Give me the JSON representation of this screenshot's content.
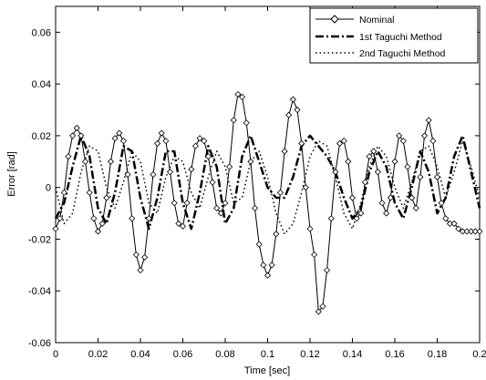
{
  "chart_data": {
    "type": "line",
    "title": "",
    "xlabel": "Time [sec]",
    "ylabel": "Error [rad]",
    "xlim": [
      0,
      0.2
    ],
    "ylim": [
      -0.06,
      0.07
    ],
    "xticks": [
      0,
      0.02,
      0.04,
      0.06,
      0.08,
      0.1,
      0.12,
      0.14,
      0.16,
      0.18,
      0.2
    ],
    "xtick_labels": [
      "0",
      "0.02",
      "0.04",
      "0.06",
      "0.08",
      "0.1",
      "0.12",
      "0.14",
      "0.16",
      "0.18",
      "0.2"
    ],
    "yticks": [
      -0.06,
      -0.04,
      -0.02,
      0,
      0.02,
      0.04,
      0.06
    ],
    "ytick_labels": [
      "-0.06",
      "-0.04",
      "-0.02",
      "0",
      "0.02",
      "0.04",
      "0.06"
    ],
    "grid": false,
    "legend_position": "top-right",
    "series": [
      {
        "name": "Nominal",
        "style": "solid-diamond-markers",
        "color": "#000000",
        "x": [
          0,
          0.002,
          0.004,
          0.006,
          0.008,
          0.01,
          0.012,
          0.014,
          0.016,
          0.018,
          0.02,
          0.022,
          0.024,
          0.026,
          0.028,
          0.03,
          0.032,
          0.034,
          0.036,
          0.038,
          0.04,
          0.042,
          0.044,
          0.046,
          0.048,
          0.05,
          0.052,
          0.054,
          0.056,
          0.058,
          0.06,
          0.062,
          0.064,
          0.066,
          0.068,
          0.07,
          0.072,
          0.074,
          0.076,
          0.078,
          0.08,
          0.082,
          0.084,
          0.086,
          0.088,
          0.09,
          0.092,
          0.094,
          0.096,
          0.098,
          0.1,
          0.102,
          0.104,
          0.106,
          0.108,
          0.11,
          0.112,
          0.114,
          0.116,
          0.118,
          0.12,
          0.122,
          0.124,
          0.126,
          0.128,
          0.13,
          0.132,
          0.134,
          0.136,
          0.138,
          0.14,
          0.142,
          0.144,
          0.146,
          0.148,
          0.15,
          0.152,
          0.154,
          0.156,
          0.158,
          0.16,
          0.162,
          0.164,
          0.166,
          0.168,
          0.17,
          0.172,
          0.174,
          0.176,
          0.178,
          0.18,
          0.182,
          0.184,
          0.186,
          0.188,
          0.19,
          0.192,
          0.194,
          0.196,
          0.198,
          0.2
        ],
        "y": [
          -0.016,
          -0.012,
          -0.002,
          0.012,
          0.02,
          0.023,
          0.02,
          0.01,
          -0.002,
          -0.012,
          -0.017,
          -0.014,
          -0.004,
          0.01,
          0.019,
          0.021,
          0.018,
          0.005,
          -0.012,
          -0.026,
          -0.032,
          -0.027,
          -0.012,
          0.005,
          0.017,
          0.021,
          0.018,
          0.006,
          -0.006,
          -0.014,
          -0.015,
          -0.006,
          0.007,
          0.016,
          0.019,
          0.018,
          0.012,
          0.002,
          -0.008,
          -0.01,
          -0.006,
          0.008,
          0.026,
          0.036,
          0.035,
          0.025,
          0.01,
          -0.008,
          -0.022,
          -0.03,
          -0.034,
          -0.03,
          -0.018,
          -0.002,
          0.014,
          0.028,
          0.034,
          0.03,
          0.017,
          0.0,
          -0.016,
          -0.026,
          -0.048,
          -0.046,
          -0.032,
          -0.012,
          0.006,
          0.017,
          0.018,
          0.01,
          -0.004,
          -0.012,
          -0.01,
          0.002,
          0.012,
          0.014,
          0.006,
          -0.006,
          -0.01,
          -0.004,
          0.01,
          0.02,
          0.018,
          0.008,
          -0.004,
          -0.008,
          0.004,
          0.02,
          0.026,
          0.018,
          0.004,
          -0.006,
          -0.012,
          -0.014,
          -0.014,
          -0.016,
          -0.017,
          -0.017,
          -0.017,
          -0.017,
          -0.017
        ]
      },
      {
        "name": "1st Taguchi Method",
        "style": "dash-dot",
        "color": "#000000",
        "x": [
          0,
          0.004,
          0.008,
          0.012,
          0.016,
          0.02,
          0.024,
          0.028,
          0.032,
          0.036,
          0.04,
          0.044,
          0.048,
          0.052,
          0.056,
          0.06,
          0.064,
          0.068,
          0.072,
          0.076,
          0.08,
          0.084,
          0.088,
          0.092,
          0.096,
          0.1,
          0.104,
          0.108,
          0.112,
          0.116,
          0.12,
          0.124,
          0.128,
          0.132,
          0.136,
          0.14,
          0.144,
          0.148,
          0.152,
          0.156,
          0.16,
          0.164,
          0.168,
          0.172,
          0.176,
          0.18,
          0.184,
          0.188,
          0.192,
          0.196,
          0.2
        ],
        "y": [
          -0.012,
          -0.006,
          0.008,
          0.02,
          0.012,
          -0.008,
          -0.014,
          -0.002,
          0.016,
          0.014,
          -0.004,
          -0.016,
          -0.004,
          0.014,
          0.014,
          -0.006,
          -0.016,
          -0.002,
          0.016,
          0.008,
          -0.014,
          -0.008,
          0.012,
          0.02,
          0.01,
          0.0,
          -0.004,
          -0.004,
          0.004,
          0.016,
          0.02,
          0.016,
          0.012,
          0.006,
          -0.004,
          -0.012,
          -0.008,
          0.006,
          0.014,
          0.008,
          -0.006,
          -0.012,
          0.0,
          0.014,
          0.006,
          -0.01,
          -0.004,
          0.012,
          0.02,
          0.006,
          -0.008
        ]
      },
      {
        "name": "2nd Taguchi Method",
        "style": "dotted",
        "color": "#000000",
        "x": [
          0,
          0.004,
          0.008,
          0.012,
          0.016,
          0.02,
          0.024,
          0.028,
          0.032,
          0.036,
          0.04,
          0.044,
          0.048,
          0.052,
          0.056,
          0.06,
          0.064,
          0.068,
          0.072,
          0.076,
          0.08,
          0.084,
          0.088,
          0.092,
          0.096,
          0.1,
          0.104,
          0.108,
          0.112,
          0.116,
          0.12,
          0.124,
          0.128,
          0.132,
          0.136,
          0.14,
          0.144,
          0.148,
          0.152,
          0.156,
          0.16,
          0.164,
          0.168,
          0.172,
          0.176,
          0.18,
          0.184,
          0.188,
          0.192,
          0.196,
          0.2
        ],
        "y": [
          0.0,
          -0.014,
          -0.01,
          0.006,
          0.016,
          0.014,
          0.0,
          -0.008,
          0.002,
          0.014,
          0.01,
          -0.006,
          -0.01,
          0.004,
          0.012,
          0.01,
          -0.002,
          -0.008,
          0.004,
          0.014,
          0.008,
          -0.006,
          -0.004,
          0.01,
          0.014,
          0.004,
          -0.01,
          -0.018,
          -0.014,
          -0.002,
          0.012,
          0.018,
          0.016,
          0.004,
          -0.01,
          -0.016,
          -0.006,
          0.008,
          0.016,
          0.012,
          0.0,
          -0.008,
          0.002,
          0.014,
          0.016,
          0.008,
          -0.004,
          0.006,
          0.018,
          0.008,
          -0.004
        ]
      }
    ]
  }
}
